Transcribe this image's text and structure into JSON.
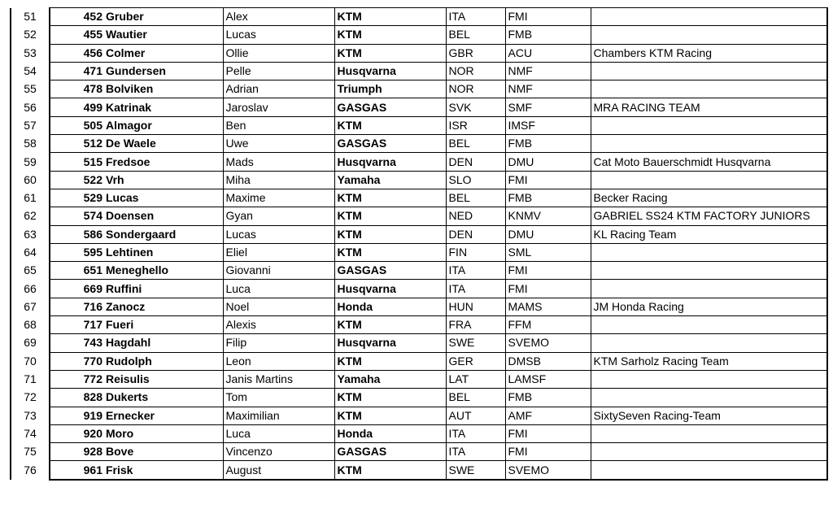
{
  "table": {
    "rows": [
      [
        "51",
        "452",
        "Gruber",
        "Alex",
        "KTM",
        "ITA",
        "FMI"
      ],
      [
        "52",
        "455",
        "Wautier",
        "Lucas",
        "KTM",
        "BEL",
        "FMB"
      ],
      [
        "53",
        "456",
        "Colmer",
        "Ollie",
        "KTM",
        "GBR",
        "ACU",
        "Chambers KTM Racing"
      ],
      [
        "54",
        "471",
        "Gundersen",
        "Pelle",
        "Husqvarna",
        "NOR",
        "NMF"
      ],
      [
        "55",
        "478",
        "Bolviken",
        "Adrian",
        "Triumph",
        "NOR",
        "NMF"
      ],
      [
        "56",
        "499",
        "Katrinak",
        "Jaroslav",
        "GASGAS",
        "SVK",
        "SMF",
        "MRA RACING TEAM"
      ],
      [
        "57",
        "505",
        "Almagor",
        "Ben",
        "KTM",
        "ISR",
        "IMSF"
      ],
      [
        "58",
        "512",
        "De Waele",
        "Uwe",
        "GASGAS",
        "BEL",
        "FMB"
      ],
      [
        "59",
        "515",
        "Fredsoe",
        "Mads",
        "Husqvarna",
        "DEN",
        "DMU",
        "Cat Moto Bauerschmidt Husqvarna"
      ],
      [
        "60",
        "522",
        "Vrh",
        "Miha",
        "Yamaha",
        "SLO",
        "FMI"
      ],
      [
        "61",
        "529",
        "Lucas",
        "Maxime",
        "KTM",
        "BEL",
        "FMB",
        "Becker Racing"
      ],
      [
        "62",
        "574",
        "Doensen",
        "Gyan",
        "KTM",
        "NED",
        "KNMV",
        "GABRIEL SS24 KTM FACTORY JUNIORS"
      ],
      [
        "63",
        "586",
        "Sondergaard",
        "Lucas",
        "KTM",
        "DEN",
        "DMU",
        "KL Racing Team"
      ],
      [
        "64",
        "595",
        "Lehtinen",
        "Eliel",
        "KTM",
        "FIN",
        "SML"
      ],
      [
        "65",
        "651",
        "Meneghello",
        "Giovanni",
        "GASGAS",
        "ITA",
        "FMI"
      ],
      [
        "66",
        "669",
        "Ruffini",
        "Luca",
        "Husqvarna",
        "ITA",
        "FMI"
      ],
      [
        "67",
        "716",
        "Zanocz",
        "Noel",
        "Honda",
        "HUN",
        "MAMS",
        "JM Honda Racing"
      ],
      [
        "68",
        "717",
        "Fueri",
        "Alexis",
        "KTM",
        "FRA",
        "FFM"
      ],
      [
        "69",
        "743",
        "Hagdahl",
        "Filip",
        "Husqvarna",
        "SWE",
        "SVEMO"
      ],
      [
        "70",
        "770",
        "Rudolph",
        "Leon",
        "KTM",
        "GER",
        "DMSB",
        "KTM Sarholz Racing Team"
      ],
      [
        "71",
        "772",
        "Reisulis",
        "Janis Martins",
        "Yamaha",
        "LAT",
        "LAMSF"
      ],
      [
        "72",
        "828",
        "Dukerts",
        "Tom",
        "KTM",
        "BEL",
        "FMB"
      ],
      [
        "73",
        "919",
        "Ernecker",
        "Maximilian",
        "KTM",
        "AUT",
        "AMF",
        "SixtySeven Racing-Team"
      ],
      [
        "74",
        "920",
        "Moro",
        "Luca",
        "Honda",
        "ITA",
        "FMI"
      ],
      [
        "75",
        "928",
        "Bove",
        "Vincenzo",
        "GASGAS",
        "ITA",
        "FMI"
      ],
      [
        "76",
        "961",
        "Frisk",
        "August",
        "KTM",
        "SWE",
        "SVEMO"
      ]
    ]
  }
}
